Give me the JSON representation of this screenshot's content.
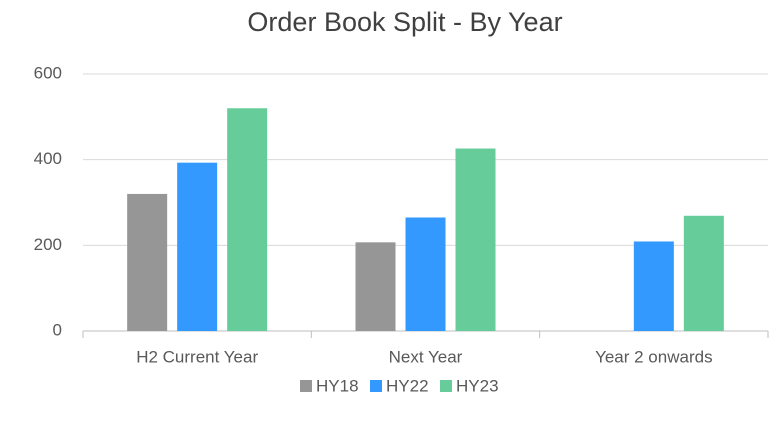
{
  "chart_data": {
    "type": "bar",
    "title": "Order Book Split - By Year",
    "categories": [
      "H2 Current Year",
      "Next Year",
      "Year 2 onwards"
    ],
    "series": [
      {
        "name": "HY18",
        "color": "#969696",
        "values": [
          320,
          207,
          null
        ]
      },
      {
        "name": "HY22",
        "color": "#3399ff",
        "values": [
          393,
          265,
          209
        ]
      },
      {
        "name": "HY23",
        "color": "#66cc99",
        "values": [
          520,
          426,
          269
        ]
      }
    ],
    "ylim": [
      0,
      600
    ],
    "yticks": [
      0,
      200,
      400,
      600
    ],
    "grid": true,
    "legend": "bottom"
  }
}
